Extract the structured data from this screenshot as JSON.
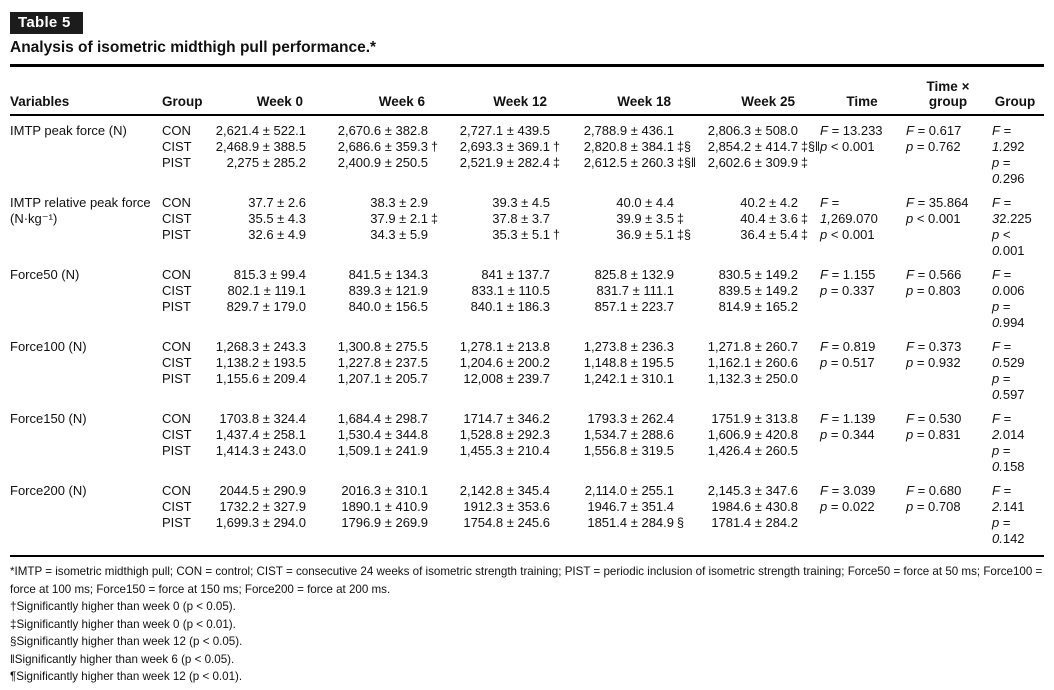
{
  "page": {
    "table_label": "Table 5",
    "title": "Analysis of isometric midthigh pull performance.*"
  },
  "columns": {
    "variables": "Variables",
    "group": "Group",
    "week0": "Week 0",
    "week6": "Week 6",
    "week12": "Week 12",
    "week18": "Week 18",
    "week25": "Week 25",
    "time": "Time",
    "time_group_line1": "Time ×",
    "time_group_line2": "group",
    "group_stat": "Group"
  },
  "sections": [
    {
      "variable": [
        "IMTP peak force (N)",
        ""
      ],
      "groups": [
        "CON",
        "CIST",
        "PIST"
      ],
      "w0": [
        "2,621.4 ± 522.1",
        "2,468.9 ± 388.5",
        "2,275 ± 285.2"
      ],
      "w6": [
        "2,670.6 ± 382.8",
        "2,686.6 ± 359.3",
        "2,400.9 ± 250.5"
      ],
      "k6": [
        "",
        "†",
        ""
      ],
      "w12": [
        "2,727.1 ± 439.5",
        "2,693.3 ± 369.1",
        "2,521.9 ± 282.4"
      ],
      "k12": [
        "",
        "†",
        "‡"
      ],
      "w18": [
        "2,788.9 ± 436.1",
        "2,820.8 ± 384.1",
        "2,612.5 ± 260.3"
      ],
      "k18": [
        "",
        "‡§",
        "‡§‖"
      ],
      "w25": [
        "2,806.3 ± 508.0",
        "2,854.2 ± 414.7",
        "2,602.6 ± 309.9"
      ],
      "k25": [
        "",
        "‡§‖",
        "‡"
      ],
      "time": [
        "F = 13.233",
        "p < 0.001",
        "",
        ""
      ],
      "tg": [
        "F = 0.617",
        "p = 0.762",
        "",
        ""
      ],
      "grp": [
        "F =",
        "1.292",
        "p =",
        "0.296"
      ]
    },
    {
      "variable": [
        "IMTP relative peak force",
        "(N·kg⁻¹)"
      ],
      "groups": [
        "CON",
        "CIST",
        "PIST"
      ],
      "w0": [
        "37.7 ± 2.6",
        "35.5 ± 4.3",
        "32.6 ± 4.9"
      ],
      "w6": [
        "38.3 ± 2.9",
        "37.9 ± 2.1",
        "34.3 ± 5.9"
      ],
      "k6": [
        "",
        "‡",
        ""
      ],
      "w12": [
        "39.3 ± 4.5",
        "37.8 ± 3.7",
        "35.3 ± 5.1"
      ],
      "k12": [
        "",
        "",
        "†"
      ],
      "w18": [
        "40.0 ± 4.4",
        "39.9 ± 3.5",
        "36.9 ± 5.1"
      ],
      "k18": [
        "",
        "‡",
        "‡§"
      ],
      "w25": [
        "40.2 ± 4.2",
        "40.4 ± 3.6",
        "36.4 ± 5.4"
      ],
      "k25": [
        "",
        "‡",
        "‡"
      ],
      "time": [
        "F =",
        "1,269.070",
        "p < 0.001",
        ""
      ],
      "tg": [
        "F = 35.864",
        "p < 0.001",
        "",
        ""
      ],
      "grp": [
        "F =",
        "32.225",
        "p <",
        "0.001"
      ]
    },
    {
      "variable": [
        "Force50 (N)",
        ""
      ],
      "groups": [
        "CON",
        "CIST",
        "PIST"
      ],
      "w0": [
        "815.3 ± 99.4",
        "802.1 ± 119.1",
        "829.7 ± 179.0"
      ],
      "w6": [
        "841.5 ± 134.3",
        "839.3 ± 121.9",
        "840.0 ± 156.5"
      ],
      "k6": [
        "",
        "",
        ""
      ],
      "w12": [
        "841 ± 137.7",
        "833.1 ± 110.5",
        "840.1 ± 186.3"
      ],
      "k12": [
        "",
        "",
        ""
      ],
      "w18": [
        "825.8 ± 132.9",
        "831.7 ± 111.1",
        "857.1 ± 223.7"
      ],
      "k18": [
        "",
        "",
        ""
      ],
      "w25": [
        "830.5 ± 149.2",
        "839.5 ± 149.2",
        "814.9 ± 165.2"
      ],
      "k25": [
        "",
        "",
        ""
      ],
      "time": [
        "F = 1.155",
        "p = 0.337",
        "",
        ""
      ],
      "tg": [
        "F = 0.566",
        "p = 0.803",
        "",
        ""
      ],
      "grp": [
        "F =",
        "0.006",
        "p =",
        "0.994"
      ]
    },
    {
      "variable": [
        "Force100 (N)",
        ""
      ],
      "groups": [
        "CON",
        "CIST",
        "PIST"
      ],
      "w0": [
        "1,268.3 ± 243.3",
        "1,138.2 ± 193.5",
        "1,155.6 ± 209.4"
      ],
      "w6": [
        "1,300.8 ± 275.5",
        "1,227.8 ± 237.5",
        "1,207.1 ± 205.7"
      ],
      "k6": [
        "",
        "",
        ""
      ],
      "w12": [
        "1,278.1 ± 213.8",
        "1,204.6 ± 200.2",
        "12,008 ± 239.7"
      ],
      "k12": [
        "",
        "",
        ""
      ],
      "w18": [
        "1,273.8 ± 236.3",
        "1,148.8 ± 195.5",
        "1,242.1 ± 310.1"
      ],
      "k18": [
        "",
        "",
        ""
      ],
      "w25": [
        "1,271.8 ± 260.7",
        "1,162.1 ± 260.6",
        "1,132.3 ± 250.0"
      ],
      "k25": [
        "",
        "",
        ""
      ],
      "time": [
        "F = 0.819",
        "p = 0.517",
        "",
        ""
      ],
      "tg": [
        "F = 0.373",
        "p = 0.932",
        "",
        ""
      ],
      "grp": [
        "F =",
        "0.529",
        "p =",
        "0.597"
      ]
    },
    {
      "variable": [
        "Force150 (N)",
        ""
      ],
      "groups": [
        "CON",
        "CIST",
        "PIST"
      ],
      "w0": [
        "1703.8 ± 324.4",
        "1,437.4 ± 258.1",
        "1,414.3 ± 243.0"
      ],
      "w6": [
        "1,684.4 ± 298.7",
        "1,530.4 ± 344.8",
        "1,509.1 ± 241.9"
      ],
      "k6": [
        "",
        "",
        ""
      ],
      "w12": [
        "1714.7 ± 346.2",
        "1,528.8 ± 292.3",
        "1,455.3 ± 210.4"
      ],
      "k12": [
        "",
        "",
        ""
      ],
      "w18": [
        "1793.3 ± 262.4",
        "1,534.7 ± 288.6",
        "1,556.8 ± 319.5"
      ],
      "k18": [
        "",
        "",
        ""
      ],
      "w25": [
        "1751.9 ± 313.8",
        "1,606.9 ± 420.8",
        "1,426.4 ± 260.5"
      ],
      "k25": [
        "",
        "",
        ""
      ],
      "time": [
        "F = 1.139",
        "p = 0.344",
        "",
        ""
      ],
      "tg": [
        "F = 0.530",
        "p = 0.831",
        "",
        ""
      ],
      "grp": [
        "F =",
        "2.014",
        "p =",
        "0.158"
      ]
    },
    {
      "variable": [
        "Force200 (N)",
        ""
      ],
      "groups": [
        "CON",
        "CIST",
        "PIST"
      ],
      "w0": [
        "2044.5 ± 290.9",
        "1732.2 ± 327.9",
        "1,699.3 ± 294.0"
      ],
      "w6": [
        "2016.3 ± 310.1",
        "1890.1 ± 410.9",
        "1796.9 ± 269.9"
      ],
      "k6": [
        "",
        "",
        ""
      ],
      "w12": [
        "2,142.8 ± 345.4",
        "1912.3 ± 353.6",
        "1754.8 ± 245.6"
      ],
      "k12": [
        "",
        "",
        ""
      ],
      "w18": [
        "2,114.0 ± 255.1",
        "1946.7 ± 351.4",
        "1851.4 ± 284.9"
      ],
      "k18": [
        "",
        "",
        "§"
      ],
      "w25": [
        "2,145.3 ± 347.6",
        "1984.6 ± 430.8",
        "1781.4 ± 284.2"
      ],
      "k25": [
        "",
        "",
        ""
      ],
      "time": [
        "F = 3.039",
        "p = 0.022",
        "",
        ""
      ],
      "tg": [
        "F = 0.680",
        "p = 0.708",
        "",
        ""
      ],
      "grp": [
        "F =",
        "2.141",
        "p =",
        "0.142"
      ]
    }
  ],
  "footnotes": {
    "abbrev": "*IMTP = isometric midthigh pull; CON = control; CIST = consecutive 24 weeks of isometric strength training; PIST = periodic inclusion of isometric strength training; Force50 = force at 50 ms; Force100 = force at 100 ms; Force150 = force at 150 ms; Force200 = force at 200 ms.",
    "dagger": "†Significantly higher than week 0 (p < 0.05).",
    "ddagger": "‡Significantly higher than week 0 (p < 0.01).",
    "section": "§Significantly higher than week 12 (p < 0.05).",
    "pipes": "‖Significantly higher than week 6 (p < 0.05).",
    "pilcrow": "¶Significantly higher than week 12 (p < 0.01)."
  }
}
